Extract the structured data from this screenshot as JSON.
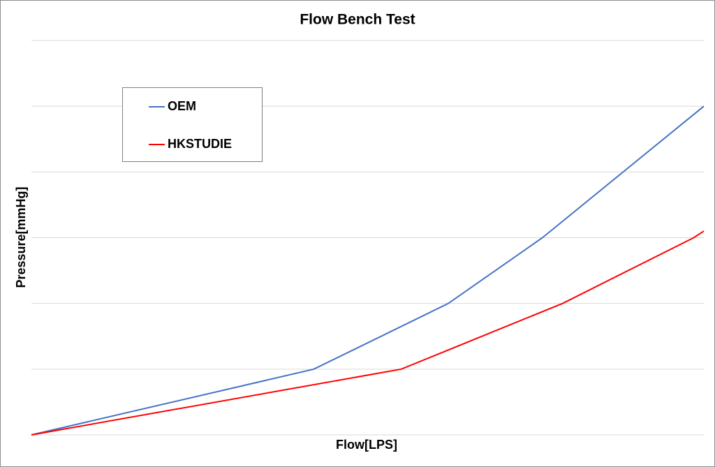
{
  "chart_data": {
    "type": "line",
    "title": "Flow Bench Test",
    "x_label": "Flow[LPS]",
    "y_label": "Pressure[mmHg]",
    "xlim": [
      0,
      100
    ],
    "ylim": [
      0,
      6
    ],
    "yticks": [
      0,
      1,
      2,
      3,
      4,
      5,
      6
    ],
    "grid": true,
    "tick_labels": false,
    "legend": "upper-left",
    "series": [
      {
        "name": "OEM",
        "color": "#4472c4",
        "x": [
          0,
          42,
          62,
          76,
          100
        ],
        "values": [
          0,
          1,
          2,
          3,
          5
        ]
      },
      {
        "name": "HKSTUDIE",
        "color": "#ff0000",
        "x": [
          0,
          55,
          79,
          98.5,
          100
        ],
        "values": [
          0,
          1,
          2,
          3,
          3.1
        ]
      }
    ]
  }
}
